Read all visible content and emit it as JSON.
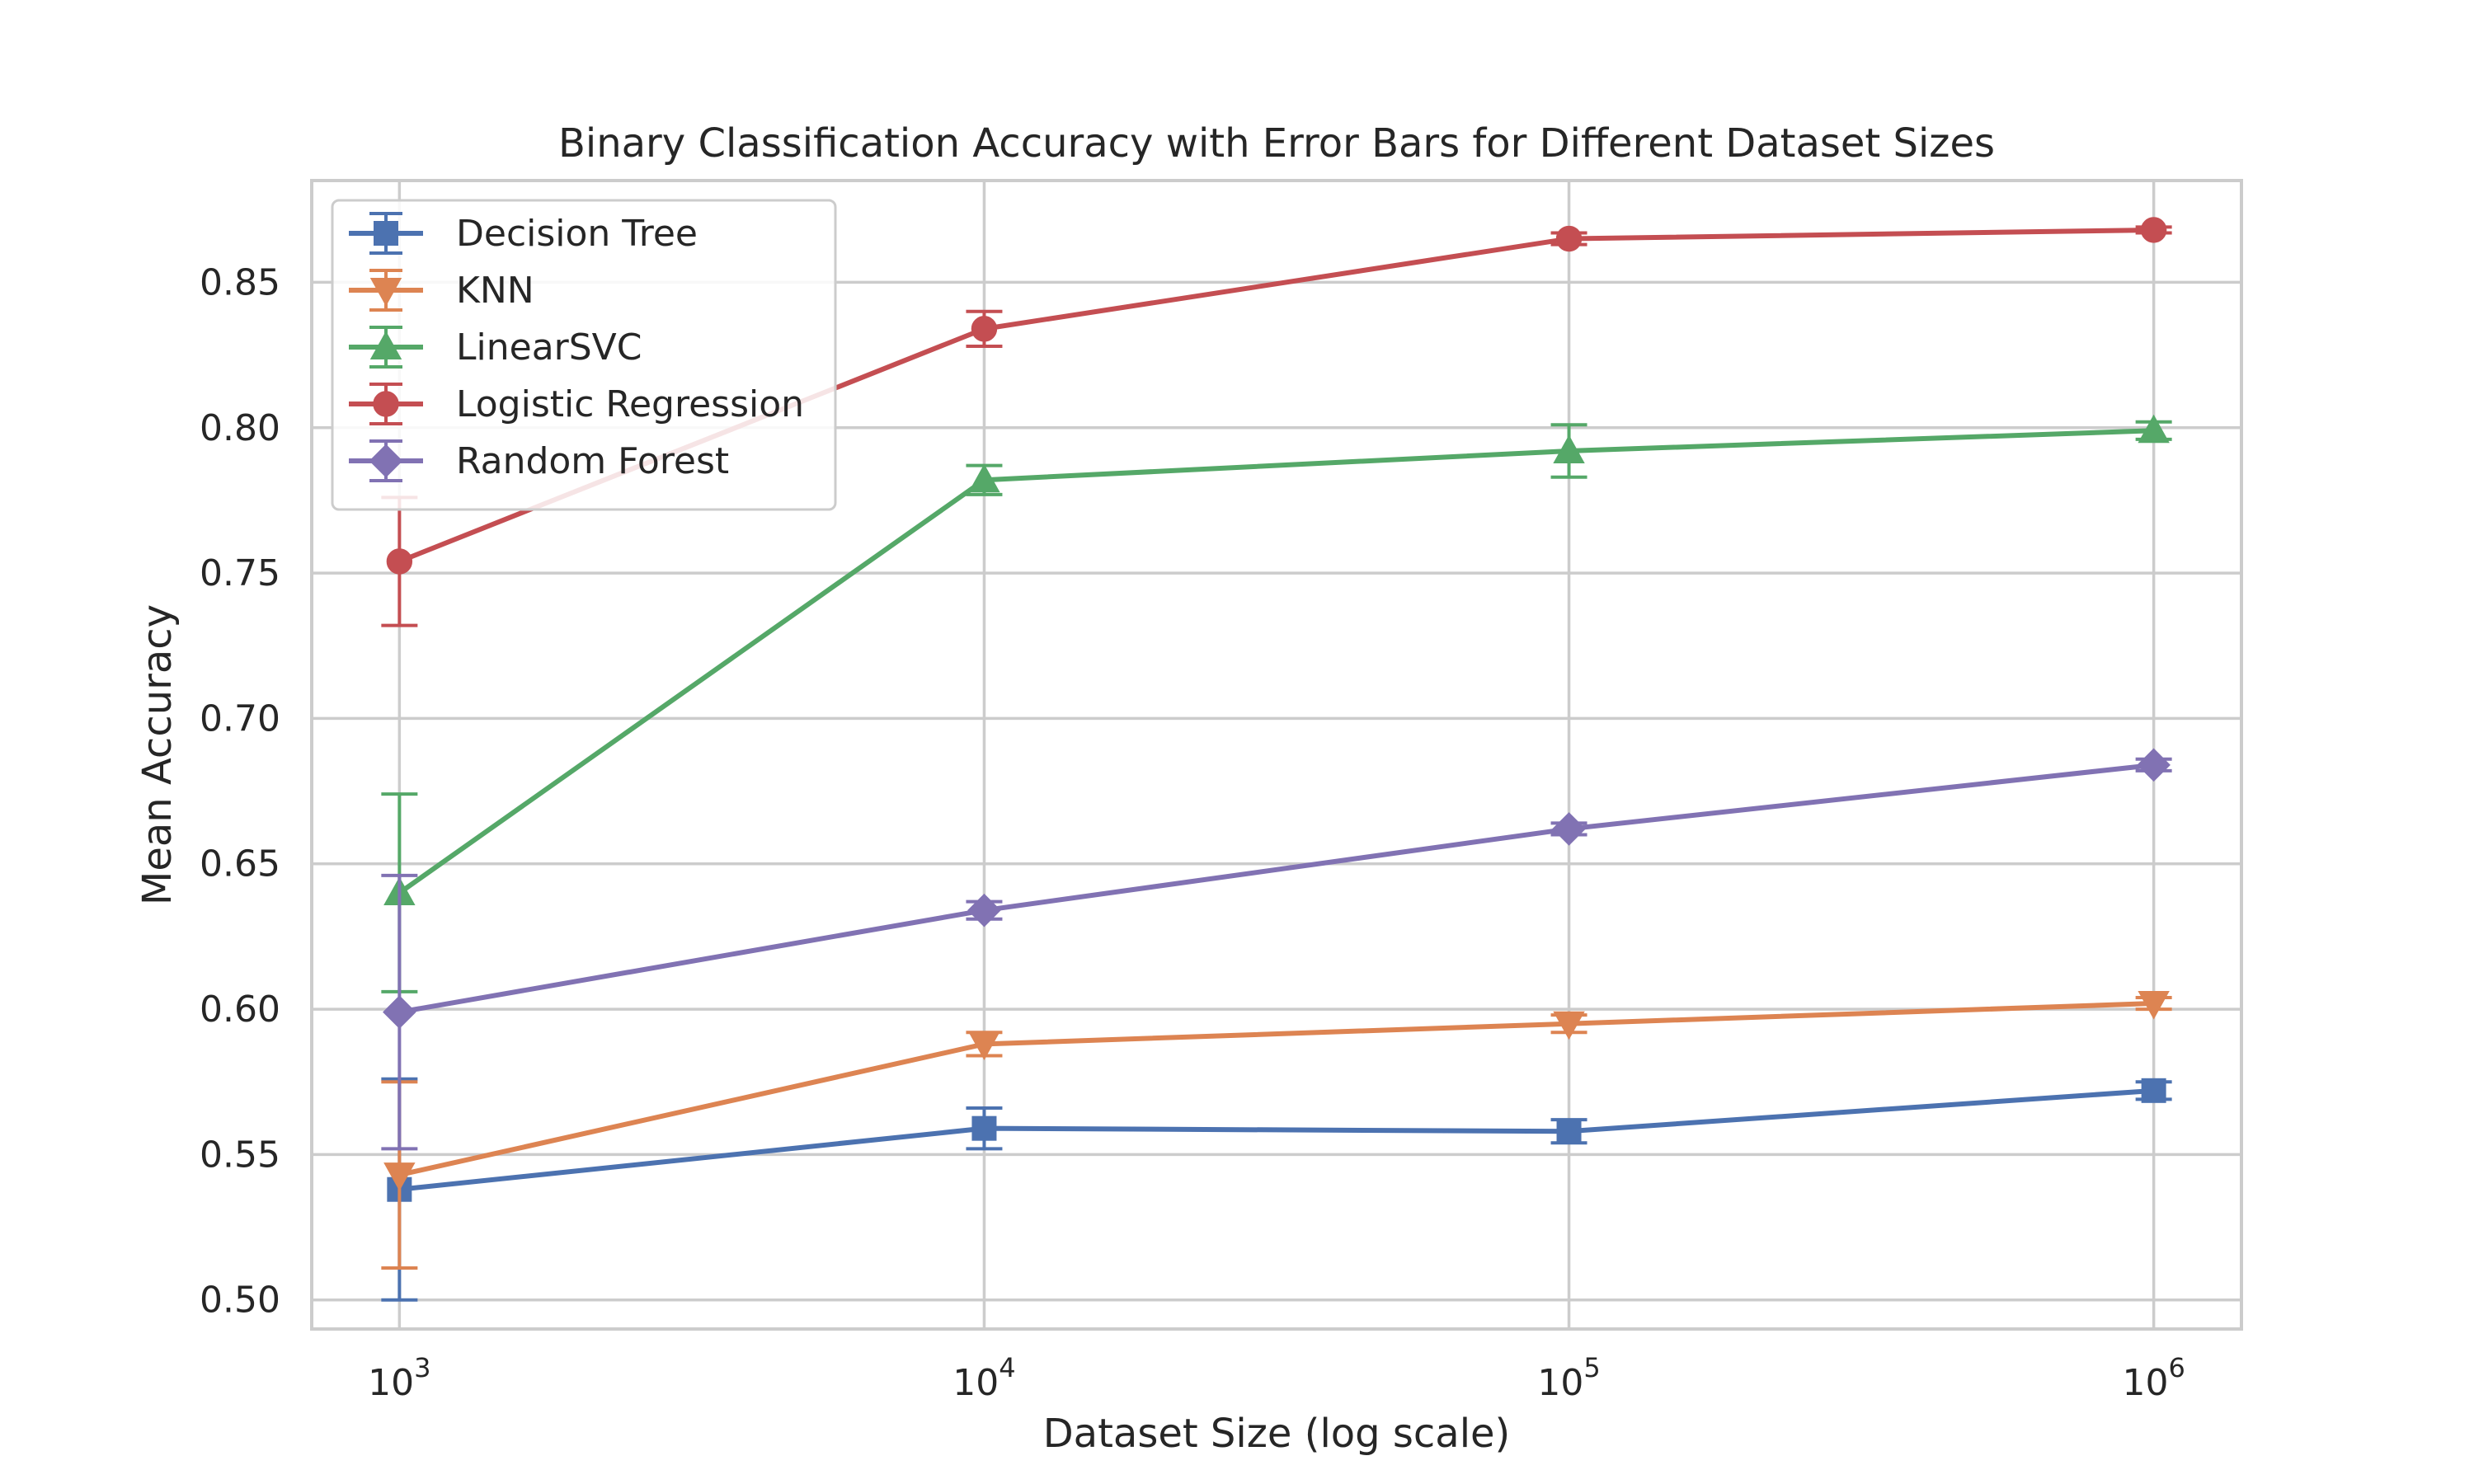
{
  "chart_data": {
    "type": "line",
    "title": "Binary Classification Accuracy with Error Bars for Different Dataset Sizes",
    "xlabel": "Dataset Size (log scale)",
    "ylabel": "Mean Accuracy",
    "xscale": "log",
    "x": [
      1000,
      10000,
      100000,
      1000000
    ],
    "x_tick_labels": [
      {
        "base": "10",
        "exp": "3"
      },
      {
        "base": "10",
        "exp": "4"
      },
      {
        "base": "10",
        "exp": "5"
      },
      {
        "base": "10",
        "exp": "6"
      }
    ],
    "ylim": [
      0.49,
      0.885
    ],
    "y_ticks": [
      0.5,
      0.55,
      0.6,
      0.65,
      0.7,
      0.75,
      0.8,
      0.85
    ],
    "y_tick_labels": [
      "0.50",
      "0.55",
      "0.60",
      "0.65",
      "0.70",
      "0.75",
      "0.80",
      "0.85"
    ],
    "grid": true,
    "legend_position": "top-left",
    "series": [
      {
        "name": "Decision Tree",
        "color": "#4c72b0",
        "marker": "square",
        "values": [
          0.538,
          0.559,
          0.558,
          0.572
        ],
        "errors": [
          0.038,
          0.007,
          0.004,
          0.003
        ]
      },
      {
        "name": "KNN",
        "color": "#dd8452",
        "marker": "triangle-down",
        "values": [
          0.543,
          0.588,
          0.595,
          0.602
        ],
        "errors": [
          0.032,
          0.004,
          0.003,
          0.002
        ]
      },
      {
        "name": "LinearSVC",
        "color": "#55a868",
        "marker": "triangle-up",
        "values": [
          0.64,
          0.782,
          0.792,
          0.799
        ],
        "errors": [
          0.034,
          0.005,
          0.009,
          0.003
        ]
      },
      {
        "name": "Logistic Regression",
        "color": "#c44e52",
        "marker": "circle",
        "values": [
          0.754,
          0.834,
          0.865,
          0.868
        ],
        "errors": [
          0.022,
          0.006,
          0.002,
          0.001
        ]
      },
      {
        "name": "Random Forest",
        "color": "#8172b3",
        "marker": "diamond",
        "values": [
          0.599,
          0.634,
          0.662,
          0.684
        ],
        "errors": [
          0.047,
          0.003,
          0.002,
          0.002
        ]
      }
    ]
  }
}
